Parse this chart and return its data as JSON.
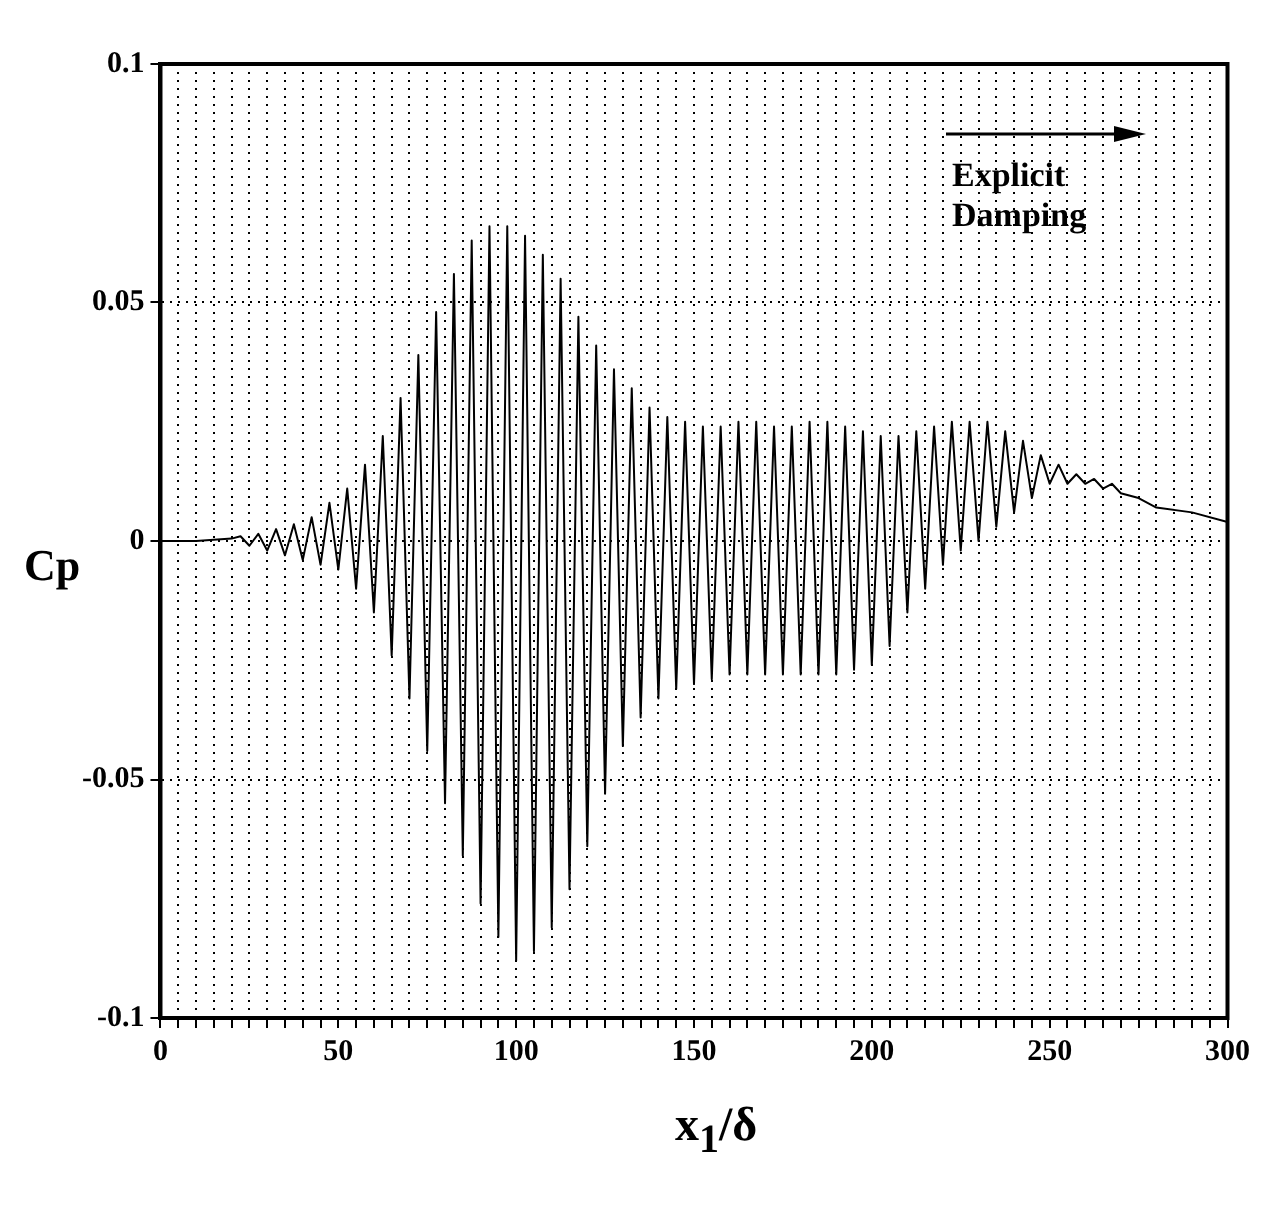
{
  "chart_data": {
    "type": "line",
    "xlabel": "x$_{1}$/δ",
    "ylabel": "Cp",
    "annotations": [
      "Explicit Damping"
    ],
    "xlim": [
      0,
      300
    ],
    "ylim": [
      -0.1,
      0.1
    ],
    "xticks": [
      0,
      {
        "value": 5,
        "label": null
      },
      {
        "value": 10,
        "label": null
      },
      {
        "value": 15,
        "label": null
      },
      {
        "value": 20,
        "label": null
      },
      {
        "value": 25,
        "label": null
      },
      {
        "value": 30,
        "label": null
      },
      {
        "value": 35,
        "label": null
      },
      {
        "value": 40,
        "label": null
      },
      {
        "value": 45,
        "label": null
      },
      50,
      {
        "value": 55,
        "label": null
      },
      {
        "value": 60,
        "label": null
      },
      {
        "value": 65,
        "label": null
      },
      {
        "value": 70,
        "label": null
      },
      {
        "value": 75,
        "label": null
      },
      {
        "value": 80,
        "label": null
      },
      {
        "value": 85,
        "label": null
      },
      {
        "value": 90,
        "label": null
      },
      {
        "value": 95,
        "label": null
      },
      100,
      {
        "value": 105,
        "label": null
      },
      {
        "value": 110,
        "label": null
      },
      {
        "value": 115,
        "label": null
      },
      {
        "value": 120,
        "label": null
      },
      {
        "value": 125,
        "label": null
      },
      {
        "value": 130,
        "label": null
      },
      {
        "value": 135,
        "label": null
      },
      {
        "value": 140,
        "label": null
      },
      {
        "value": 145,
        "label": null
      },
      150,
      {
        "value": 155,
        "label": null
      },
      {
        "value": 160,
        "label": null
      },
      {
        "value": 165,
        "label": null
      },
      {
        "value": 170,
        "label": null
      },
      {
        "value": 175,
        "label": null
      },
      {
        "value": 180,
        "label": null
      },
      {
        "value": 185,
        "label": null
      },
      {
        "value": 190,
        "label": null
      },
      {
        "value": 195,
        "label": null
      },
      200,
      {
        "value": 205,
        "label": null
      },
      {
        "value": 210,
        "label": null
      },
      {
        "value": 215,
        "label": null
      },
      {
        "value": 220,
        "label": null
      },
      {
        "value": 225,
        "label": null
      },
      {
        "value": 230,
        "label": null
      },
      {
        "value": 235,
        "label": null
      },
      {
        "value": 240,
        "label": null
      },
      {
        "value": 245,
        "label": null
      },
      250,
      {
        "value": 255,
        "label": null
      },
      {
        "value": 260,
        "label": null
      },
      {
        "value": 265,
        "label": null
      },
      {
        "value": 270,
        "label": null
      },
      {
        "value": 275,
        "label": null
      },
      {
        "value": 280,
        "label": null
      },
      {
        "value": 285,
        "label": null
      },
      {
        "value": 290,
        "label": null
      },
      {
        "value": 295,
        "label": null
      },
      300
    ],
    "yticks": [
      -0.1,
      -0.05,
      0,
      0.05,
      0.1
    ],
    "grid": true,
    "line_style": "solid",
    "series": [
      {
        "color": "#000000",
        "x": [
          0,
          10,
          20,
          22.5,
          25,
          27.5,
          30,
          32.5,
          35,
          37.5,
          40,
          42.5,
          45,
          47.5,
          50,
          52.5,
          55,
          57.5,
          60,
          62.5,
          65,
          67.5,
          70,
          72.5,
          75,
          77.5,
          80,
          82.5,
          85,
          87.5,
          90,
          92.5,
          95,
          97.5,
          100,
          102.5,
          105,
          107.5,
          110,
          112.5,
          115,
          117.5,
          120,
          122.5,
          125,
          127.5,
          130,
          132.5,
          135,
          137.5,
          140,
          142.5,
          145,
          147.5,
          150,
          152.5,
          155,
          157.5,
          160,
          162.5,
          165,
          167.5,
          170,
          172.5,
          175,
          177.5,
          180,
          182.5,
          185,
          187.5,
          190,
          192.5,
          195,
          197.5,
          200,
          202.5,
          205,
          207.5,
          210,
          212.5,
          215,
          217.5,
          220,
          222.5,
          225,
          227.5,
          230,
          232.5,
          235,
          237.5,
          240,
          242.5,
          245,
          247.5,
          250,
          252.5,
          255,
          257.5,
          260,
          262.5,
          265,
          267.5,
          270,
          275,
          280,
          290,
          300
        ],
        "values": [
          0,
          0,
          0.0005,
          0.001,
          -0.001,
          0.0015,
          -0.002,
          0.0025,
          -0.003,
          0.0035,
          -0.004,
          0.005,
          -0.005,
          0.008,
          -0.006,
          0.011,
          -0.01,
          0.016,
          -0.015,
          0.022,
          -0.024,
          0.03,
          -0.033,
          0.039,
          -0.044,
          0.048,
          -0.055,
          0.056,
          -0.066,
          0.063,
          -0.076,
          0.066,
          -0.083,
          0.066,
          -0.088,
          0.064,
          -0.086,
          0.06,
          -0.081,
          0.055,
          -0.073,
          0.047,
          -0.064,
          0.041,
          -0.053,
          0.036,
          -0.043,
          0.032,
          -0.037,
          0.028,
          -0.033,
          0.026,
          -0.031,
          0.025,
          -0.03,
          0.024,
          -0.029,
          0.024,
          -0.028,
          0.025,
          -0.028,
          0.025,
          -0.028,
          0.024,
          -0.028,
          0.024,
          -0.028,
          0.025,
          -0.028,
          0.025,
          -0.028,
          0.024,
          -0.027,
          0.023,
          -0.026,
          0.022,
          -0.022,
          0.022,
          -0.015,
          0.023,
          -0.01,
          0.024,
          -0.005,
          0.025,
          -0.002,
          0.025,
          0,
          0.025,
          0.003,
          0.023,
          0.006,
          0.021,
          0.009,
          0.018,
          0.012,
          0.016,
          0.012,
          0.014,
          0.012,
          0.013,
          0.011,
          0.012,
          0.01,
          0.009,
          0.007,
          0.006,
          0.004
        ]
      }
    ]
  }
}
